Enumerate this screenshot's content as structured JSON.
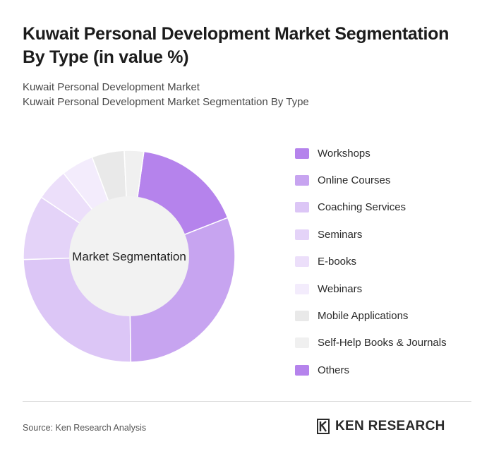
{
  "header": {
    "title": "Kuwait Personal Development Market Segmentation By Type (in value %)",
    "subtitle_line1": "Kuwait Personal Development Market",
    "subtitle_line2": "Kuwait Personal Development Market Segmentation By Type"
  },
  "chart_data": {
    "type": "pie",
    "donut": true,
    "center_label": "Market Segmentation",
    "categories": [
      "Workshops",
      "Online Courses",
      "Coaching Services",
      "Seminars",
      "E-books",
      "Webinars",
      "Mobile Applications",
      "Self-Help Books & Journals",
      "Others"
    ],
    "values": [
      17,
      31,
      25,
      10,
      5,
      5,
      5,
      3,
      0
    ],
    "colors": [
      "#b583ec",
      "#c7a4f0",
      "#dcc6f6",
      "#e4d3f8",
      "#ecdffa",
      "#f3ecfc",
      "#e9e9e9",
      "#f0f0f0",
      "#b583ec"
    ],
    "legend_position": "right"
  },
  "footer": {
    "source": "Source: Ken Research Analysis",
    "logo_text": "KEN RESEARCH"
  }
}
